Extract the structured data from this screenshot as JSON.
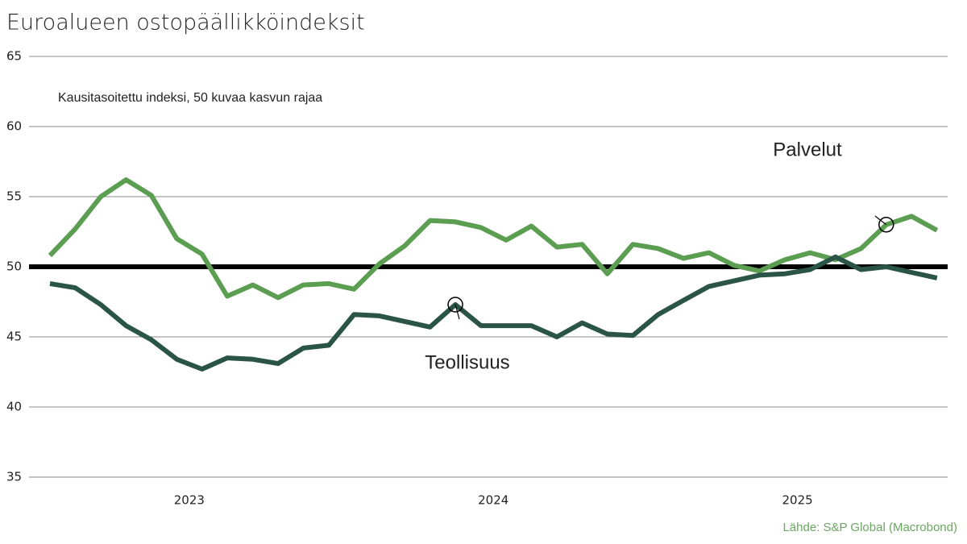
{
  "chart_data": {
    "type": "line",
    "title": "Euroalueen ostopäällikköindeksit",
    "subtitle": "Kausitasoitettu indeksi, 50 kuvaa kasvun rajaa",
    "source": "Lähde: S&P Global (Macrobond)",
    "x": [
      2023,
      2023.083,
      2023.167,
      2023.25,
      2023.333,
      2023.417,
      2023.5,
      2023.583,
      2023.667,
      2023.75,
      2023.833,
      2023.917,
      2024,
      2024.083,
      2024.167,
      2024.25,
      2024.333,
      2024.417,
      2024.5,
      2024.583,
      2024.667,
      2024.75,
      2024.833,
      2024.917,
      2025,
      2025.083,
      2025.167,
      2025.25,
      2025.333,
      2025.417,
      2025.5,
      2025.583,
      2025.667,
      2025.75,
      2025.833,
      2025.917
    ],
    "series": [
      {
        "name": "Palvelut",
        "color": "#5b9e51",
        "values": [
          50.8,
          52.7,
          55.0,
          56.2,
          55.1,
          52.0,
          50.9,
          47.9,
          48.7,
          47.8,
          48.7,
          48.8,
          48.4,
          50.2,
          51.5,
          53.3,
          53.2,
          52.8,
          51.9,
          52.9,
          51.4,
          51.6,
          49.5,
          51.6,
          51.3,
          50.6,
          51.0,
          50.1,
          49.7,
          50.5,
          51.0,
          50.5,
          51.3,
          53.0,
          53.6,
          52.6
        ]
      },
      {
        "name": "Teollisuus",
        "color": "#295446",
        "values": [
          48.8,
          48.5,
          47.3,
          45.8,
          44.8,
          43.4,
          42.7,
          43.5,
          43.4,
          43.1,
          44.2,
          44.4,
          46.6,
          46.5,
          46.1,
          45.7,
          47.3,
          45.8,
          45.8,
          45.8,
          45.0,
          46.0,
          45.2,
          45.1,
          46.6,
          47.6,
          48.6,
          49.0,
          49.4,
          49.5,
          49.8,
          50.7,
          49.8,
          50.0,
          49.6,
          49.2
        ]
      }
    ],
    "xlim": [
      2022.931,
      2025.952
    ],
    "xticks": [
      {
        "value": 2023.458,
        "label": "2023"
      },
      {
        "value": 2024.458,
        "label": "2024"
      },
      {
        "value": 2025.458,
        "label": "2025"
      }
    ],
    "ylim": [
      35,
      65
    ],
    "yticks": [
      35,
      40,
      45,
      50,
      55,
      60,
      65
    ],
    "reference_line": 50,
    "grid": true
  }
}
